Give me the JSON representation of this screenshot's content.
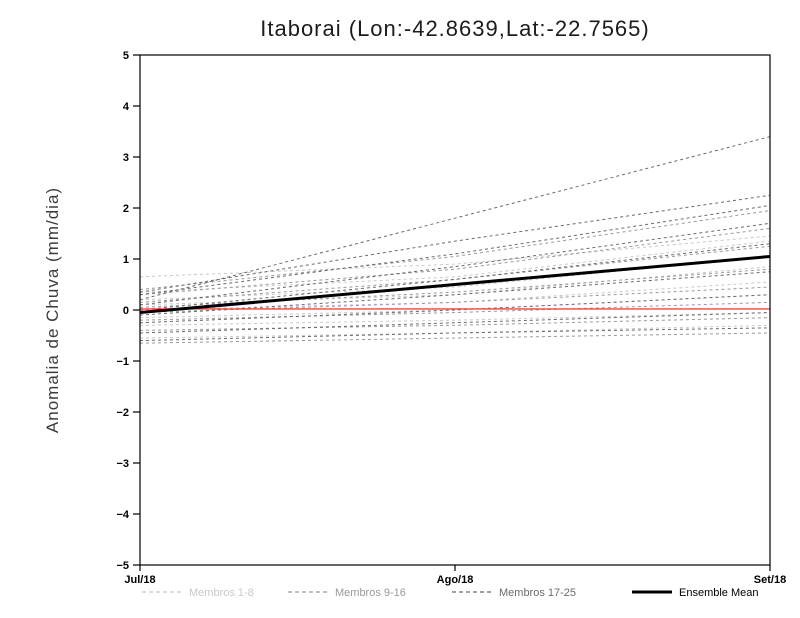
{
  "chart": {
    "title": "Itaborai (Lon:-42.8639,Lat:-22.7565)",
    "ylabel": "Anomalia de Chuva (mm/dia)"
  },
  "chart_data": {
    "type": "line",
    "title": "Itaborai (Lon:-42.8639,Lat:-22.7565)",
    "xlabel": "",
    "ylabel": "Anomalia de Chuva (mm/dia)",
    "x_categories": [
      "Jul/18",
      "Ago/18",
      "Set/18"
    ],
    "ylim": [
      -5,
      5
    ],
    "ytick_step": 1,
    "grid": false,
    "legend_position": "bottom",
    "zero_line": {
      "color": "#ff4040",
      "values": [
        0.02,
        0.02,
        0.02
      ]
    },
    "ensemble_mean": {
      "name": "Ensemble Mean",
      "color": "#000000",
      "values": [
        -0.05,
        0.5,
        1.05
      ]
    },
    "member_groups": [
      {
        "name": "Membros 1-8",
        "color": "#c9c9c9",
        "series": [
          {
            "values": [
              0.65,
              0.9,
              1.45
            ]
          },
          {
            "values": [
              0.35,
              0.65,
              1.35
            ]
          },
          {
            "values": [
              0.2,
              0.45,
              1.05
            ]
          },
          {
            "values": [
              0.1,
              0.3,
              0.85
            ]
          },
          {
            "values": [
              0.0,
              0.15,
              0.55
            ]
          },
          {
            "values": [
              -0.15,
              0.0,
              0.3
            ]
          },
          {
            "values": [
              -0.3,
              -0.2,
              -0.05
            ]
          },
          {
            "values": [
              -0.55,
              -0.45,
              -0.3
            ]
          }
        ]
      },
      {
        "name": "Membros 9-16",
        "color": "#9a9a9a",
        "series": [
          {
            "values": [
              0.4,
              1.05,
              1.95
            ]
          },
          {
            "values": [
              0.3,
              0.8,
              1.6
            ]
          },
          {
            "values": [
              0.15,
              0.6,
              1.25
            ]
          },
          {
            "values": [
              0.05,
              0.35,
              0.8
            ]
          },
          {
            "values": [
              -0.05,
              0.15,
              0.45
            ]
          },
          {
            "values": [
              -0.2,
              -0.05,
              0.15
            ]
          },
          {
            "values": [
              -0.4,
              -0.3,
              -0.15
            ]
          },
          {
            "values": [
              -0.65,
              -0.55,
              -0.45
            ]
          }
        ]
      },
      {
        "name": "Membros 17-25",
        "color": "#6b6b6b",
        "series": [
          {
            "values": [
              0.2,
              1.8,
              3.4
            ]
          },
          {
            "values": [
              0.35,
              1.35,
              2.25
            ]
          },
          {
            "values": [
              0.3,
              1.1,
              2.05
            ]
          },
          {
            "values": [
              0.1,
              0.85,
              1.7
            ]
          },
          {
            "values": [
              0.0,
              0.6,
              1.3
            ]
          },
          {
            "values": [
              -0.1,
              0.3,
              0.75
            ]
          },
          {
            "values": [
              -0.25,
              0.0,
              0.3
            ]
          },
          {
            "values": [
              -0.45,
              -0.25,
              -0.05
            ]
          },
          {
            "values": [
              -0.6,
              -0.45,
              -0.35
            ]
          }
        ]
      }
    ],
    "legend": [
      {
        "label": "Membros 1-8",
        "color": "#c9c9c9",
        "style": "dashed"
      },
      {
        "label": "Membros 9-16",
        "color": "#9a9a9a",
        "style": "dashed"
      },
      {
        "label": "Membros 17-25",
        "color": "#6b6b6b",
        "style": "dashed"
      },
      {
        "label": "Ensemble Mean",
        "color": "#000000",
        "style": "solid"
      }
    ]
  }
}
